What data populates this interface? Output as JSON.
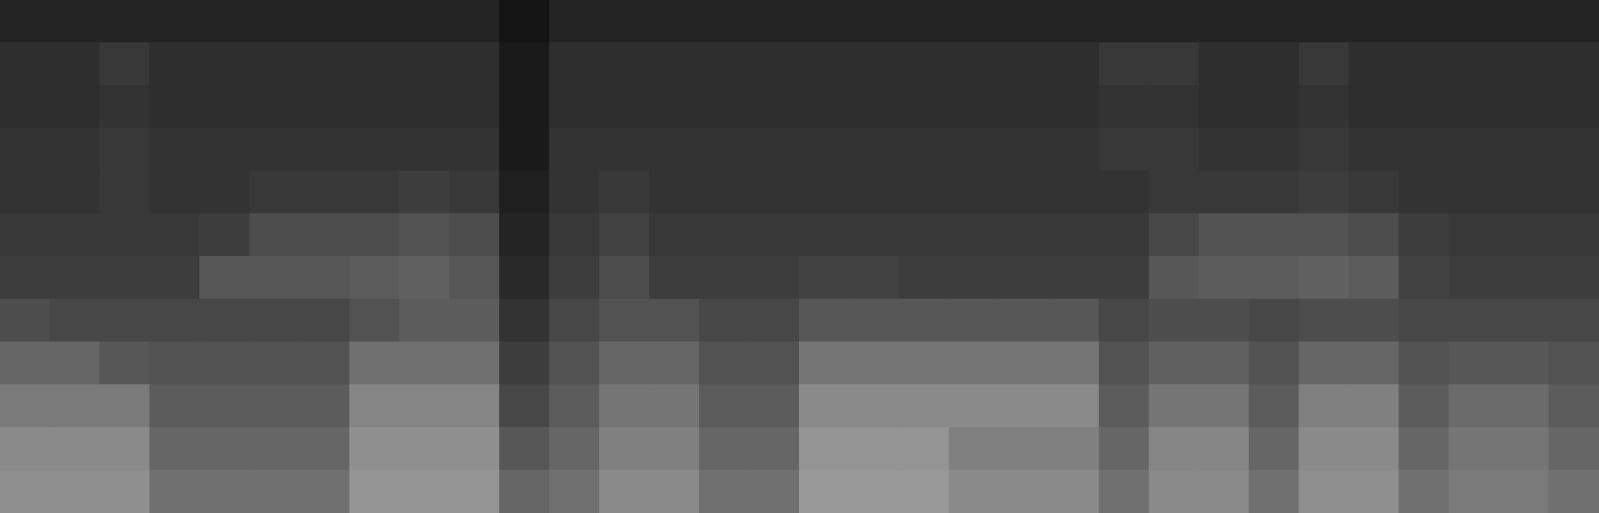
{
  "chart_data": {
    "type": "heatmap",
    "tick_labels": false,
    "color_range": [
      0,
      100
    ],
    "cells": [
      [
        14,
        14,
        14,
        14,
        14,
        14,
        14,
        14,
        14,
        14,
        8,
        14,
        14,
        14,
        14,
        14,
        14,
        14,
        14,
        14,
        14,
        14,
        14,
        14,
        14,
        14,
        14,
        14,
        14,
        14,
        14,
        14
      ],
      [
        18,
        18,
        22,
        18,
        18,
        18,
        18,
        18,
        18,
        18,
        10,
        18,
        18,
        18,
        18,
        18,
        18,
        18,
        18,
        18,
        18,
        18,
        22,
        22,
        18,
        18,
        22,
        18,
        18,
        18,
        18,
        18
      ],
      [
        18,
        18,
        20,
        18,
        18,
        18,
        18,
        18,
        18,
        18,
        10,
        18,
        18,
        18,
        18,
        18,
        18,
        18,
        18,
        18,
        18,
        18,
        20,
        20,
        18,
        18,
        20,
        18,
        18,
        18,
        18,
        18
      ],
      [
        20,
        20,
        22,
        20,
        20,
        20,
        20,
        20,
        20,
        20,
        10,
        20,
        20,
        20,
        20,
        20,
        20,
        20,
        20,
        20,
        20,
        20,
        22,
        22,
        20,
        20,
        22,
        20,
        20,
        20,
        20,
        20
      ],
      [
        20,
        20,
        22,
        20,
        20,
        22,
        22,
        22,
        24,
        22,
        12,
        20,
        22,
        20,
        20,
        20,
        20,
        20,
        20,
        20,
        20,
        20,
        20,
        22,
        22,
        22,
        24,
        22,
        20,
        20,
        20,
        20
      ],
      [
        22,
        22,
        22,
        22,
        24,
        30,
        30,
        30,
        32,
        30,
        14,
        22,
        26,
        22,
        22,
        22,
        22,
        22,
        22,
        22,
        22,
        22,
        22,
        28,
        32,
        32,
        32,
        30,
        24,
        22,
        22,
        22
      ],
      [
        24,
        24,
        24,
        24,
        34,
        34,
        34,
        36,
        38,
        34,
        16,
        24,
        30,
        24,
        24,
        24,
        26,
        26,
        24,
        24,
        24,
        24,
        24,
        34,
        36,
        36,
        38,
        36,
        26,
        24,
        24,
        24
      ],
      [
        30,
        28,
        28,
        28,
        28,
        28,
        28,
        32,
        36,
        36,
        20,
        28,
        32,
        32,
        28,
        28,
        34,
        34,
        34,
        34,
        34,
        34,
        28,
        30,
        30,
        28,
        30,
        30,
        28,
        28,
        28,
        28
      ],
      [
        40,
        40,
        34,
        32,
        32,
        32,
        32,
        44,
        44,
        44,
        24,
        32,
        40,
        40,
        32,
        32,
        46,
        46,
        46,
        46,
        46,
        46,
        32,
        38,
        38,
        32,
        40,
        40,
        32,
        34,
        34,
        32
      ],
      [
        48,
        48,
        48,
        36,
        36,
        36,
        36,
        52,
        52,
        52,
        28,
        36,
        46,
        46,
        36,
        36,
        54,
        54,
        54,
        54,
        54,
        54,
        36,
        46,
        46,
        36,
        50,
        50,
        36,
        42,
        42,
        36
      ],
      [
        54,
        54,
        54,
        40,
        40,
        40,
        40,
        56,
        56,
        56,
        34,
        40,
        50,
        50,
        40,
        40,
        58,
        58,
        58,
        50,
        50,
        50,
        40,
        52,
        52,
        40,
        54,
        54,
        40,
        46,
        46,
        40
      ],
      [
        56,
        56,
        56,
        44,
        44,
        44,
        44,
        58,
        58,
        58,
        40,
        44,
        54,
        54,
        44,
        44,
        60,
        60,
        60,
        54,
        54,
        54,
        44,
        54,
        54,
        44,
        56,
        56,
        44,
        48,
        48,
        44
      ]
    ]
  }
}
